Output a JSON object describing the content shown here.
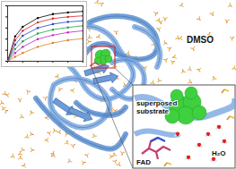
{
  "chart_data": {
    "type": "line",
    "x": [
      0,
      10,
      20,
      40,
      60,
      80,
      100
    ],
    "series": [
      {
        "color": "#000000",
        "marker": "circle",
        "values": [
          0,
          0.45,
          0.62,
          0.78,
          0.85,
          0.88,
          0.9
        ]
      },
      {
        "color": "#e02020",
        "marker": "circle",
        "values": [
          0,
          0.38,
          0.55,
          0.7,
          0.77,
          0.8,
          0.82
        ]
      },
      {
        "color": "#2040d0",
        "marker": "circle",
        "values": [
          0,
          0.3,
          0.46,
          0.6,
          0.67,
          0.71,
          0.73
        ]
      },
      {
        "color": "#20a040",
        "marker": "circle",
        "values": [
          0,
          0.22,
          0.36,
          0.5,
          0.57,
          0.61,
          0.64
        ]
      },
      {
        "color": "#c020c0",
        "marker": "circle",
        "values": [
          0,
          0.15,
          0.26,
          0.4,
          0.47,
          0.52,
          0.55
        ]
      },
      {
        "color": "#e08020",
        "marker": "circle",
        "values": [
          0,
          0.08,
          0.15,
          0.26,
          0.33,
          0.38,
          0.41
        ]
      }
    ],
    "xlim": [
      0,
      100
    ],
    "ylim": [
      0,
      1
    ],
    "xticks": [
      0,
      20,
      40,
      60,
      80,
      100
    ],
    "yticks": [
      0,
      0.2,
      0.4,
      0.6,
      0.8,
      1
    ],
    "tick_labels": false
  },
  "labels": {
    "solvent": "DMSO",
    "substrate": "superposed substrate",
    "cofactor": "FAD",
    "water": "H₂O"
  }
}
